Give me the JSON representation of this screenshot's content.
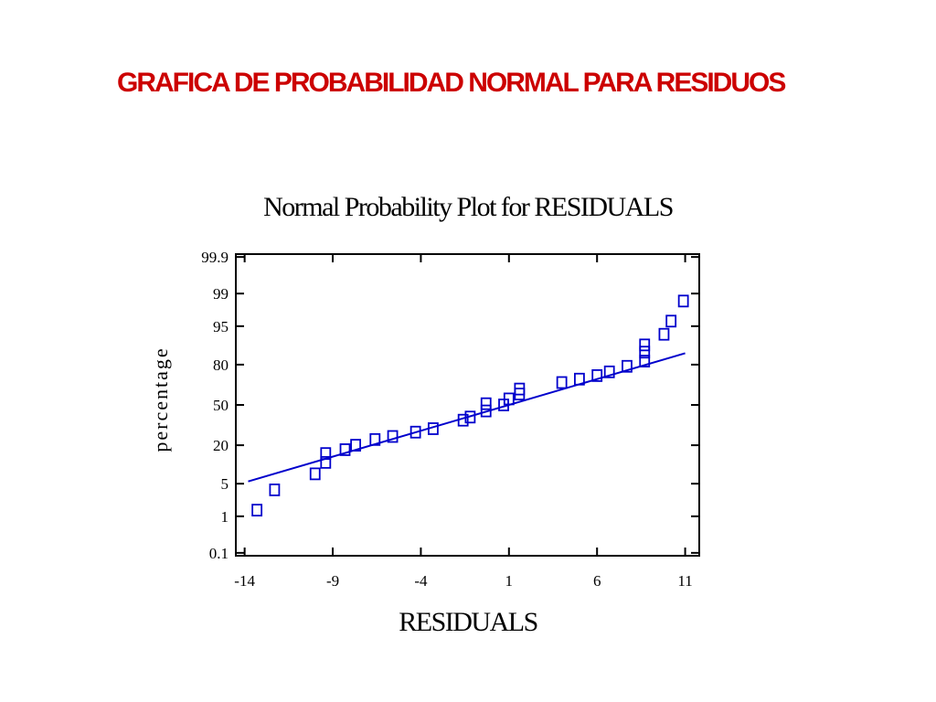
{
  "slide": {
    "title": "GRAFICA DE PROBABILIDAD NORMAL PARA RESIDUOS",
    "title_color": "#cc0000"
  },
  "chart_data": {
    "type": "scatter",
    "title": "Normal Probability Plot for RESIDUALS",
    "xlabel": "RESIDUALS",
    "ylabel": "percentage",
    "x_ticks": [
      -14,
      -9,
      -4,
      1,
      6,
      11
    ],
    "x_tick_labels": [
      "-14",
      "-9",
      "-4",
      "1",
      "6",
      "11"
    ],
    "xlim": [
      -14.5,
      11.8
    ],
    "y_scale": "normal-probability",
    "y_ticks": [
      0.1,
      1,
      5,
      20,
      50,
      80,
      95,
      99,
      99.9
    ],
    "y_tick_labels": [
      "0.1",
      "1",
      "5",
      "20",
      "50",
      "80",
      "95",
      "99",
      "99.9"
    ],
    "ylim": [
      0.1,
      99.9
    ],
    "marker": "square",
    "color": "#0000cc",
    "grid": false,
    "points": [
      {
        "x": -13.3,
        "y": 1.4
      },
      {
        "x": -12.3,
        "y": 3.8
      },
      {
        "x": -10.0,
        "y": 7.5
      },
      {
        "x": -9.4,
        "y": 11.5
      },
      {
        "x": -9.4,
        "y": 15.5
      },
      {
        "x": -8.3,
        "y": 17.5
      },
      {
        "x": -7.7,
        "y": 20.0
      },
      {
        "x": -6.6,
        "y": 23.5
      },
      {
        "x": -5.6,
        "y": 25.5
      },
      {
        "x": -4.3,
        "y": 28.5
      },
      {
        "x": -3.3,
        "y": 31.0
      },
      {
        "x": -1.6,
        "y": 37.5
      },
      {
        "x": -1.2,
        "y": 40.0
      },
      {
        "x": -0.3,
        "y": 45.0
      },
      {
        "x": -0.3,
        "y": 51.0
      },
      {
        "x": 0.7,
        "y": 50.0
      },
      {
        "x": 1.0,
        "y": 55.0
      },
      {
        "x": 1.6,
        "y": 59.0
      },
      {
        "x": 1.6,
        "y": 63.0
      },
      {
        "x": 4.0,
        "y": 68.0
      },
      {
        "x": 5.0,
        "y": 70.5
      },
      {
        "x": 6.0,
        "y": 73.0
      },
      {
        "x": 6.7,
        "y": 75.5
      },
      {
        "x": 7.7,
        "y": 79.0
      },
      {
        "x": 8.7,
        "y": 82.0
      },
      {
        "x": 8.7,
        "y": 86.5
      },
      {
        "x": 8.7,
        "y": 89.5
      },
      {
        "x": 9.8,
        "y": 93.0
      },
      {
        "x": 10.2,
        "y": 96.0
      },
      {
        "x": 10.9,
        "y": 98.5
      }
    ],
    "fit_line": {
      "x": [
        -13.8,
        11.0
      ],
      "y": [
        5.5,
        86.0
      ]
    }
  }
}
